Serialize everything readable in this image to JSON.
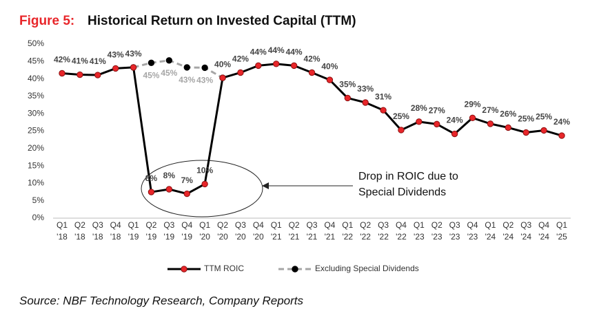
{
  "chart_data": {
    "type": "line",
    "figure_label": "Figure 5:",
    "title": "Historical Return on Invested Capital (TTM)",
    "source": "Source: NBF Technology Research, Company Reports",
    "annotation": [
      "Drop in ROIC due to",
      "Special Dividends"
    ],
    "categories": [
      "Q1 '18",
      "Q2 '18",
      "Q3 '18",
      "Q4 '18",
      "Q1 '19",
      "Q2 '19",
      "Q3 '19",
      "Q4 '19",
      "Q1 '20",
      "Q2 '20",
      "Q3 '20",
      "Q4 '20",
      "Q1 '21",
      "Q2 '21",
      "Q3 '21",
      "Q4 '21",
      "Q1 '22",
      "Q2 '22",
      "Q3 '22",
      "Q4 '22",
      "Q1 '23",
      "Q2 '23",
      "Q3 '23",
      "Q4 '23",
      "Q1 '24",
      "Q2 '24",
      "Q3 '24",
      "Q4 '24",
      "Q1 '25"
    ],
    "series": [
      {
        "name": "TTM ROIC",
        "color": "#000000",
        "marker_color": "#e8262a",
        "dashed": false,
        "label_position": "above",
        "values": [
          41.6,
          41.2,
          41.1,
          43.0,
          43.3,
          7.5,
          8.3,
          7.0,
          9.8,
          40.3,
          41.8,
          43.8,
          44.3,
          43.8,
          41.8,
          39.7,
          34.5,
          33.2,
          31.0,
          25.3,
          27.7,
          27.0,
          24.2,
          28.8,
          27.1,
          26.0,
          24.6,
          25.2,
          23.7
        ],
        "value_labels": [
          "42%",
          "41%",
          "41%",
          "43%",
          "43%",
          "8%",
          "8%",
          "7%",
          "10%",
          "40%",
          "42%",
          "44%",
          "44%",
          "44%",
          "42%",
          "40%",
          "35%",
          "33%",
          "31%",
          "25%",
          "28%",
          "27%",
          "24%",
          "29%",
          "27%",
          "26%",
          "25%",
          "25%",
          "24%"
        ]
      },
      {
        "name": "Excluding Special Dividends",
        "color": "#a6a6a6",
        "marker_color": "#000000",
        "dashed": true,
        "label_position": "below",
        "values": [
          null,
          null,
          null,
          null,
          43.3,
          44.6,
          45.3,
          43.3,
          43.2,
          40.3,
          null,
          null,
          null,
          null,
          null,
          null,
          null,
          null,
          null,
          null,
          null,
          null,
          null,
          null,
          null,
          null,
          null,
          null,
          null
        ],
        "value_labels": [
          null,
          null,
          null,
          null,
          null,
          "45%",
          "45%",
          "43%",
          "43%",
          null,
          null,
          null,
          null,
          null,
          null,
          null,
          null,
          null,
          null,
          null,
          null,
          null,
          null,
          null,
          null,
          null,
          null,
          null,
          null
        ]
      }
    ],
    "ylim": [
      0,
      50
    ],
    "yticks": [
      {
        "value": 0,
        "label": "0%"
      },
      {
        "value": 5,
        "label": "5%"
      },
      {
        "value": 10,
        "label": "10%"
      },
      {
        "value": 15,
        "label": "15%"
      },
      {
        "value": 20,
        "label": "20%"
      },
      {
        "value": 25,
        "label": "25%"
      },
      {
        "value": 30,
        "label": "30%"
      },
      {
        "value": 35,
        "label": "35%"
      },
      {
        "value": 40,
        "label": "40%"
      },
      {
        "value": 45,
        "label": "45%"
      },
      {
        "value": 50,
        "label": "50%"
      }
    ],
    "grid": false
  }
}
